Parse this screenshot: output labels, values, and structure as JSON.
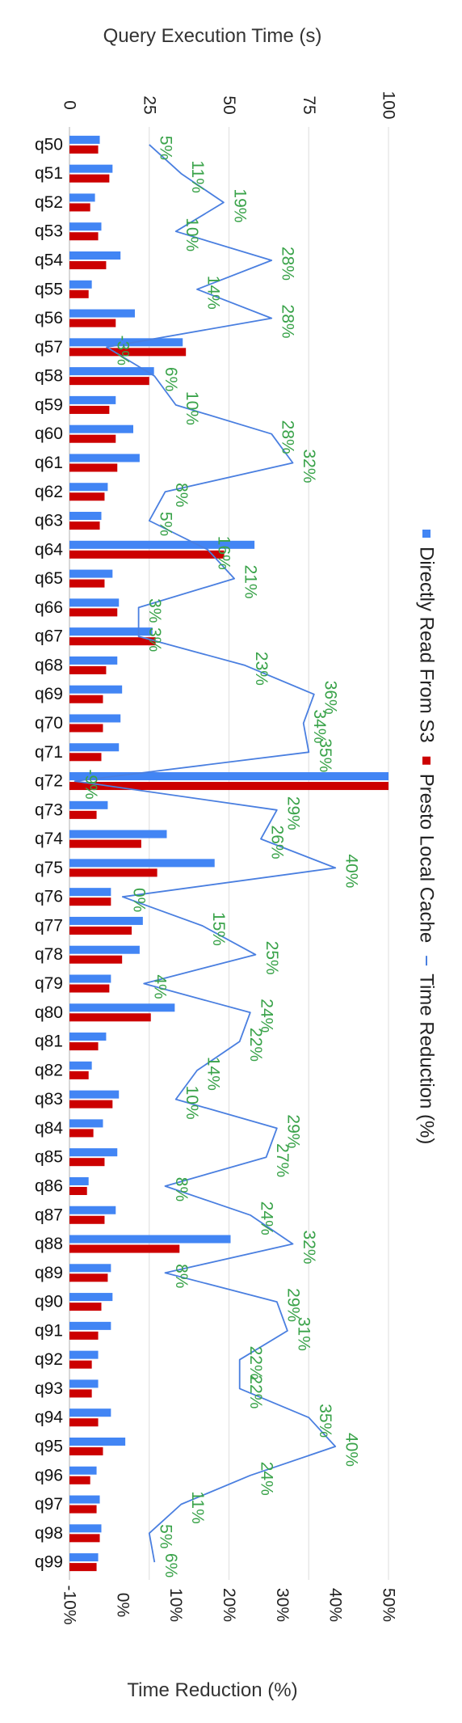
{
  "chart_data": {
    "type": "bar",
    "orientation": "horizontal",
    "title": "Query Execution Time (s)",
    "secondary_axis_title": "Time Reduction (%)",
    "categories": [
      "q50",
      "q51",
      "q52",
      "q53",
      "q54",
      "q55",
      "q56",
      "q57",
      "q58",
      "q59",
      "q60",
      "q61",
      "q62",
      "q63",
      "q64",
      "q65",
      "q66",
      "q67",
      "q68",
      "q69",
      "q70",
      "q71",
      "q72",
      "q73",
      "q74",
      "q75",
      "q76",
      "q77",
      "q78",
      "q79",
      "q80",
      "q81",
      "q82",
      "q83",
      "q84",
      "q85",
      "q86",
      "q87",
      "q88",
      "q89",
      "q90",
      "q91",
      "q92",
      "q93",
      "q94",
      "q95",
      "q96",
      "q97",
      "q98",
      "q99"
    ],
    "primary_axis": {
      "min": 0,
      "max": 100,
      "ticks": [
        "0",
        "25",
        "50",
        "75",
        "100"
      ],
      "tick_values": [
        0,
        25,
        50,
        75,
        100
      ]
    },
    "secondary_axis": {
      "min": -10,
      "max": 50,
      "ticks": [
        "-10%",
        "0%",
        "10%",
        "20%",
        "30%",
        "40%",
        "50%"
      ],
      "tick_values": [
        -10,
        0,
        10,
        20,
        30,
        40,
        50
      ]
    },
    "series": [
      {
        "name": "Directly Read From S3",
        "axis": "primary",
        "color": "#4285f4",
        "values": [
          9.5,
          13.5,
          8,
          10,
          16,
          7,
          20.5,
          35.5,
          26.5,
          14.5,
          20,
          22,
          12,
          10,
          58,
          13.5,
          15.5,
          26,
          15,
          16.5,
          16,
          15.5,
          100,
          12,
          30.5,
          45.5,
          13,
          23,
          22,
          13,
          33,
          11.5,
          7,
          15.5,
          10.5,
          15,
          6,
          14.5,
          50.5,
          13,
          13.5,
          13,
          9,
          9,
          13,
          17.5,
          8.5,
          9.5,
          10,
          9
        ]
      },
      {
        "name": "Presto Local Cache",
        "axis": "primary",
        "color": "#cc0000",
        "values": [
          9,
          12.5,
          6.5,
          9,
          11.5,
          6,
          14.5,
          36.5,
          25,
          12.5,
          14.5,
          15,
          11,
          9.5,
          48.5,
          11,
          15,
          27,
          11.5,
          10.5,
          10.5,
          10,
          100,
          8.5,
          22.5,
          27.5,
          13,
          19.5,
          16.5,
          12.5,
          25.5,
          9,
          6,
          13.5,
          7.5,
          11,
          5.5,
          11,
          34.5,
          12,
          10,
          9,
          7,
          7,
          9,
          10.5,
          6.5,
          8.5,
          9.5,
          8.5
        ]
      },
      {
        "name": "Time Reduction (%)",
        "axis": "secondary",
        "type": "line",
        "color": "#4a7fe0",
        "values": [
          5,
          11,
          19,
          10,
          28,
          14,
          28,
          -3,
          6,
          10,
          28,
          32,
          8,
          5,
          16,
          21,
          3,
          3,
          23,
          36,
          34,
          35,
          -9,
          29,
          26,
          40,
          0,
          15,
          25,
          4,
          24,
          22,
          14,
          10,
          29,
          27,
          8,
          24,
          32,
          8,
          29,
          31,
          22,
          22,
          35,
          40,
          24,
          11,
          5,
          6
        ],
        "labels": [
          "5%",
          "11%",
          "19%",
          "10%",
          "28%",
          "14%",
          "28%",
          "-3%",
          "6%",
          "10%",
          "28%",
          "32%",
          "8%",
          "5%",
          "16%",
          "21%",
          "3%",
          "3%",
          "23%",
          "36%",
          "34%",
          "35%",
          "-9%",
          "29%",
          "26%",
          "40%",
          "0%",
          "15%",
          "25%",
          "4%",
          "24%",
          "22%",
          "14%",
          "10%",
          "29%",
          "27%",
          "8%",
          "24%",
          "32%",
          "8%",
          "29%",
          "31%",
          "22%",
          "22%",
          "35%",
          "40%",
          "24%",
          "11%",
          "5%",
          "6%"
        ]
      }
    ],
    "legend_position": "right",
    "grid": true
  }
}
